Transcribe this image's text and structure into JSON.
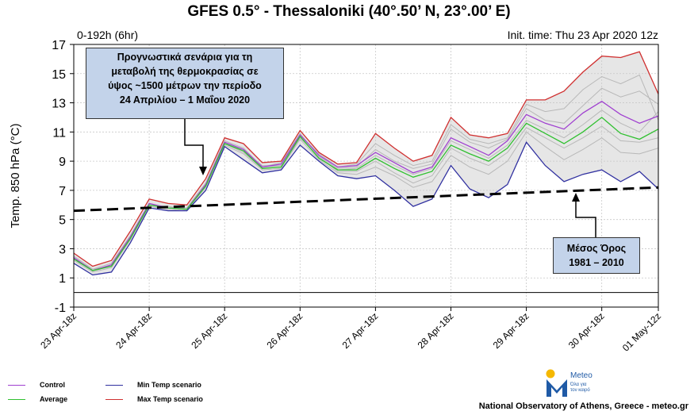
{
  "header": {
    "title": "GFES 0.5° - Thessaloniki (40°.50’ N, 23°.00’ E)",
    "range": "0-192h (6hr)",
    "init": "Init. time: Thu 23 Apr 2020 12z"
  },
  "annotations": {
    "forecast": "Προγνωστικά σενάρια για τη\nμεταβολή της θερμοκρασίας σε\nύψος ~1500 μέτρων την περίοδο\n24 Απριλίου – 1 Μαΐου 2020",
    "climate": "Μέσος Όρος\n1981 – 2010"
  },
  "legend": {
    "control": "Control",
    "average": "Average",
    "min": "Min Temp scenario",
    "max": "Max Temp scenario"
  },
  "brand": {
    "name": "Meteo",
    "tagline_1": "Όλα για",
    "tagline_2": "τον καιρό"
  },
  "footer": "National Observatory of Athens, Greece - meteo.gr",
  "colors": {
    "control": "#a040d0",
    "average": "#30c030",
    "min": "#3030a0",
    "max": "#d03030",
    "members": "#b8b8b8",
    "band": "#e6e6e6",
    "annotation_box": "#c3d3ea"
  },
  "chart_data": {
    "type": "line",
    "title": "GFES 0.5° - Thessaloniki (40°.50’ N, 23°.00’ E)",
    "ylabel": "Temp. 850 hPa (°C)",
    "xlabel": "",
    "ylim": [
      -1,
      17
    ],
    "yticks": [
      -1,
      1,
      3,
      5,
      7,
      9,
      11,
      13,
      15,
      17
    ],
    "xtick_labels": [
      "23 Apr-18z",
      "24 Apr-18z",
      "25 Apr-18z",
      "26 Apr-18z",
      "27 Apr-18z",
      "28 Apr-18z",
      "29 Apr-18z",
      "30 Apr-18z",
      "01 May-12z"
    ],
    "xtick_steps": [
      0,
      4,
      8,
      12,
      16,
      20,
      24,
      28,
      31
    ],
    "grid": true,
    "legend_position": "bottom-left",
    "zero_line": 0,
    "climatology": {
      "start": 5.6,
      "end": 7.2
    },
    "series": [
      {
        "name": "Max Temp scenario",
        "values": [
          2.7,
          1.8,
          2.2,
          4.2,
          6.4,
          6.1,
          6.0,
          7.8,
          10.6,
          10.2,
          8.9,
          9.0,
          11.1,
          9.6,
          8.8,
          8.9,
          10.9,
          9.9,
          9.0,
          9.4,
          12.0,
          10.8,
          10.6,
          10.9,
          13.2,
          13.2,
          13.8,
          15.1,
          16.2,
          16.1,
          16.5,
          13.6
        ]
      },
      {
        "name": "Control",
        "values": [
          2.4,
          1.5,
          1.9,
          3.8,
          6.1,
          5.8,
          5.7,
          7.4,
          10.3,
          9.8,
          8.6,
          8.8,
          10.8,
          9.4,
          8.6,
          8.7,
          9.6,
          8.9,
          8.2,
          8.6,
          10.6,
          10.0,
          9.4,
          10.4,
          12.2,
          11.6,
          11.2,
          12.3,
          13.1,
          12.2,
          11.6,
          12.1
        ]
      },
      {
        "name": "Average",
        "values": [
          2.3,
          1.5,
          1.8,
          3.7,
          6.0,
          5.8,
          5.7,
          7.3,
          10.2,
          9.7,
          8.5,
          8.6,
          10.7,
          9.2,
          8.4,
          8.4,
          9.2,
          8.5,
          7.9,
          8.3,
          10.1,
          9.5,
          9.0,
          9.9,
          11.6,
          10.9,
          10.2,
          11.0,
          12.0,
          10.9,
          10.5,
          11.2
        ]
      },
      {
        "name": "Min Temp scenario",
        "values": [
          2.0,
          1.2,
          1.4,
          3.4,
          5.8,
          5.6,
          5.6,
          7.0,
          10.0,
          9.1,
          8.2,
          8.4,
          10.1,
          9.0,
          8.0,
          7.8,
          8.0,
          7.0,
          5.9,
          6.4,
          8.7,
          7.1,
          6.5,
          7.4,
          10.3,
          8.7,
          7.6,
          8.1,
          8.4,
          7.6,
          8.3,
          7.1
        ]
      }
    ],
    "members": [
      [
        2.5,
        1.6,
        2.0,
        3.9,
        6.1,
        5.8,
        5.8,
        7.5,
        10.4,
        9.9,
        8.6,
        8.9,
        10.9,
        9.3,
        8.5,
        8.6,
        9.8,
        9.0,
        8.5,
        8.8,
        11.2,
        10.3,
        9.9,
        10.5,
        12.6,
        11.8,
        11.6,
        12.8,
        14.0,
        13.4,
        13.8,
        12.9
      ],
      [
        2.2,
        1.4,
        1.7,
        3.6,
        5.9,
        5.7,
        5.6,
        7.2,
        10.1,
        9.5,
        8.4,
        8.5,
        10.5,
        9.1,
        8.2,
        8.1,
        8.6,
        8.0,
        7.2,
        7.6,
        9.4,
        8.6,
        8.1,
        9.0,
        11.0,
        10.0,
        9.1,
        9.8,
        10.6,
        9.6,
        9.5,
        9.9
      ],
      [
        2.4,
        1.5,
        1.9,
        3.8,
        6.0,
        5.9,
        5.7,
        7.4,
        10.3,
        9.7,
        8.7,
        8.7,
        10.8,
        9.5,
        8.6,
        8.8,
        10.2,
        9.4,
        8.7,
        9.0,
        11.5,
        10.5,
        10.2,
        10.6,
        12.9,
        12.4,
        12.6,
        13.9,
        14.8,
        14.3,
        14.9,
        11.8
      ],
      [
        2.3,
        1.5,
        1.8,
        3.7,
        6.0,
        5.8,
        5.7,
        7.3,
        10.2,
        9.6,
        8.5,
        8.6,
        10.6,
        9.3,
        8.3,
        8.3,
        9.0,
        8.2,
        7.5,
        8.0,
        9.9,
        9.2,
        8.7,
        9.6,
        11.3,
        10.6,
        9.9,
        10.6,
        11.4,
        10.4,
        10.3,
        10.6
      ],
      [
        2.3,
        1.6,
        1.8,
        3.8,
        6.1,
        5.8,
        5.8,
        7.4,
        10.2,
        9.8,
        8.6,
        8.7,
        10.7,
        9.2,
        8.4,
        8.5,
        9.4,
        8.7,
        8.1,
        8.5,
        10.4,
        9.8,
        9.2,
        10.1,
        11.8,
        11.2,
        10.6,
        11.5,
        12.5,
        11.6,
        11.0,
        12.4
      ]
    ]
  }
}
